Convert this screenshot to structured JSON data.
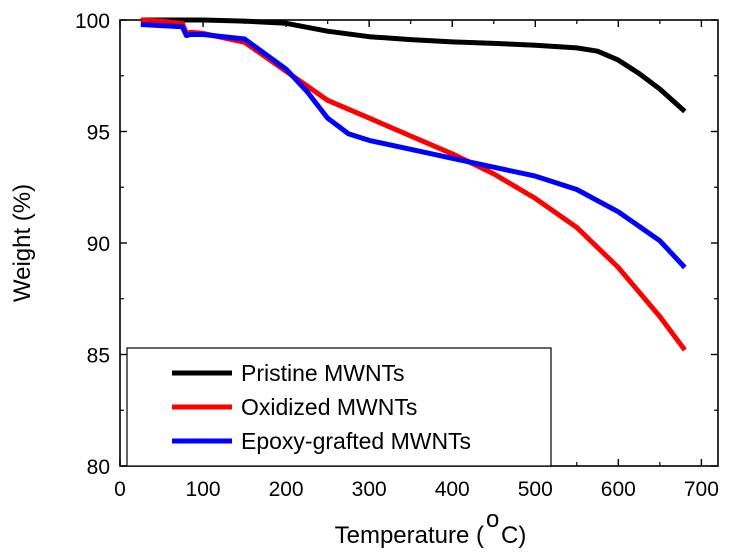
{
  "chart_data": {
    "type": "line",
    "title": "",
    "xlabel": "Temperature (",
    "xlabel_superscript": "o",
    "xlabel_suffix": "C)",
    "ylabel": "Weight (%)",
    "xlim": [
      0,
      720
    ],
    "ylim": [
      80,
      100
    ],
    "xticks": [
      0,
      100,
      200,
      300,
      400,
      500,
      600,
      700
    ],
    "yticks": [
      80,
      85,
      90,
      95,
      100
    ],
    "grid": false,
    "legend_position": "lower-left",
    "series": [
      {
        "name": "Pristine MWNTs",
        "color": "#000000",
        "x": [
          25,
          50,
          100,
          150,
          200,
          250,
          300,
          350,
          400,
          450,
          500,
          550,
          575,
          600,
          625,
          650,
          680
        ],
        "y": [
          100.0,
          100.0,
          100.0,
          99.95,
          99.85,
          99.5,
          99.25,
          99.12,
          99.02,
          98.95,
          98.87,
          98.75,
          98.6,
          98.2,
          97.6,
          96.9,
          95.9
        ]
      },
      {
        "name": "Oxidized MWNTs",
        "color": "#ff0000",
        "x": [
          25,
          50,
          75,
          80,
          85,
          100,
          150,
          200,
          250,
          300,
          350,
          400,
          450,
          500,
          550,
          600,
          650,
          680
        ],
        "y": [
          100.0,
          99.95,
          99.85,
          99.4,
          99.45,
          99.4,
          99.0,
          97.7,
          96.4,
          95.6,
          94.8,
          94.0,
          93.1,
          92.0,
          90.7,
          88.9,
          86.7,
          85.2
        ]
      },
      {
        "name": "Epoxy-grafted MWNTs",
        "color": "#0000ff",
        "x": [
          25,
          50,
          75,
          80,
          85,
          100,
          150,
          200,
          225,
          250,
          275,
          300,
          350,
          400,
          450,
          500,
          550,
          600,
          650,
          680
        ],
        "y": [
          99.8,
          99.75,
          99.7,
          99.3,
          99.35,
          99.35,
          99.15,
          97.8,
          96.8,
          95.6,
          94.9,
          94.6,
          94.2,
          93.8,
          93.4,
          93.0,
          92.4,
          91.4,
          90.1,
          88.9
        ]
      }
    ]
  }
}
